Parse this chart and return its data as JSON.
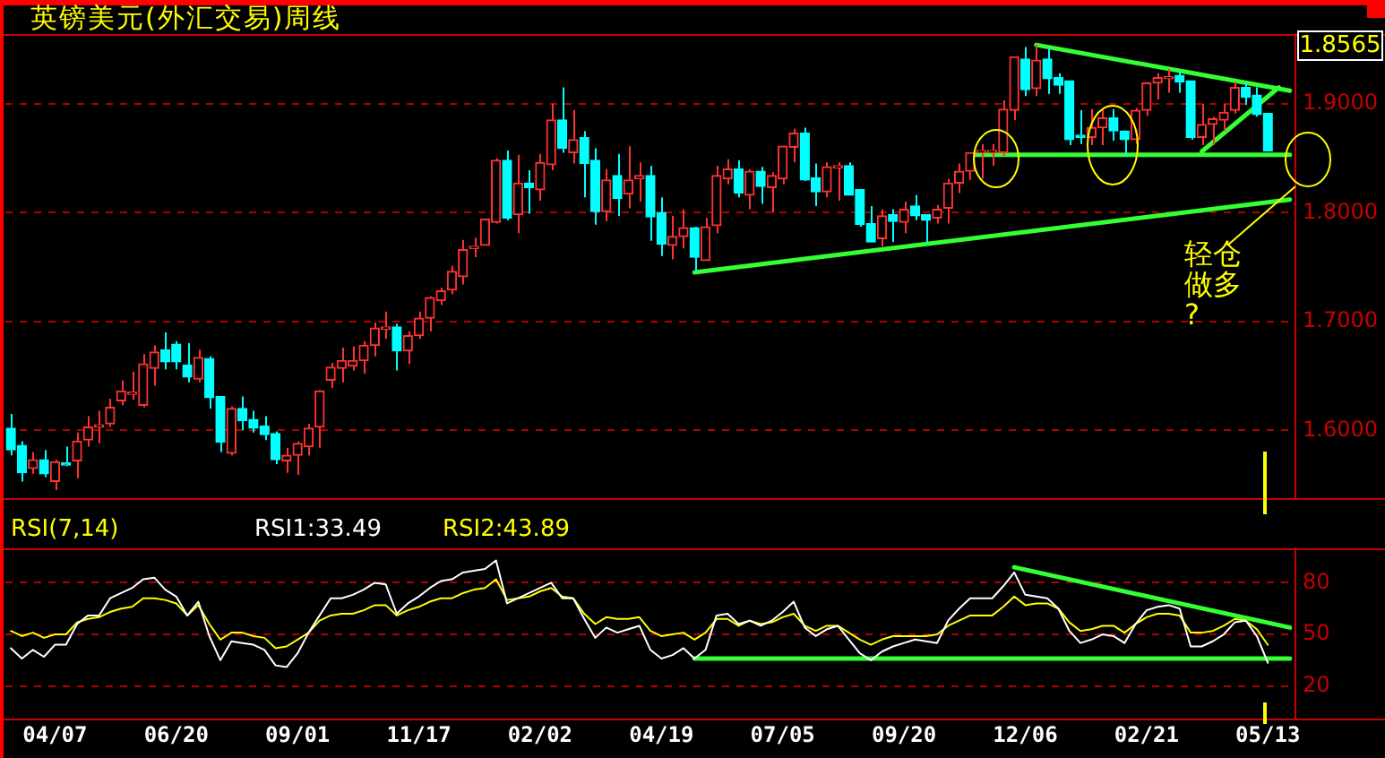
{
  "chart_data": [
    {
      "type": "candlestick",
      "title": "英镑美元(外汇交易)周线",
      "ohlc": [
        [
          1.602,
          1.615,
          1.577,
          1.582
        ],
        [
          1.586,
          1.59,
          1.553,
          1.561
        ],
        [
          1.565,
          1.58,
          1.56,
          1.573
        ],
        [
          1.573,
          1.582,
          1.557,
          1.56
        ],
        [
          1.553,
          1.573,
          1.545,
          1.571
        ],
        [
          1.57,
          1.585,
          1.567,
          1.568
        ],
        [
          1.572,
          1.598,
          1.556,
          1.59
        ],
        [
          1.591,
          1.613,
          1.585,
          1.603
        ],
        [
          1.603,
          1.618,
          1.588,
          1.605
        ],
        [
          1.606,
          1.629,
          1.603,
          1.621
        ],
        [
          1.627,
          1.646,
          1.623,
          1.636
        ],
        [
          1.633,
          1.654,
          1.628,
          1.635
        ],
        [
          1.623,
          1.67,
          1.621,
          1.661
        ],
        [
          1.657,
          1.678,
          1.641,
          1.672
        ],
        [
          1.674,
          1.69,
          1.656,
          1.663
        ],
        [
          1.679,
          1.682,
          1.656,
          1.663
        ],
        [
          1.66,
          1.68,
          1.644,
          1.649
        ],
        [
          1.647,
          1.674,
          1.644,
          1.667
        ],
        [
          1.666,
          1.668,
          1.62,
          1.63
        ],
        [
          1.631,
          1.631,
          1.58,
          1.589
        ],
        [
          1.579,
          1.622,
          1.577,
          1.62
        ],
        [
          1.62,
          1.631,
          1.6,
          1.609
        ],
        [
          1.61,
          1.618,
          1.598,
          1.602
        ],
        [
          1.604,
          1.613,
          1.591,
          1.596
        ],
        [
          1.597,
          1.599,
          1.569,
          1.573
        ],
        [
          1.572,
          1.584,
          1.561,
          1.577
        ],
        [
          1.577,
          1.59,
          1.559,
          1.588
        ],
        [
          1.585,
          1.606,
          1.577,
          1.602
        ],
        [
          1.603,
          1.637,
          1.584,
          1.636
        ],
        [
          1.646,
          1.662,
          1.639,
          1.658
        ],
        [
          1.657,
          1.676,
          1.644,
          1.664
        ],
        [
          1.659,
          1.677,
          1.655,
          1.664
        ],
        [
          1.664,
          1.682,
          1.652,
          1.678
        ],
        [
          1.678,
          1.699,
          1.668,
          1.694
        ],
        [
          1.693,
          1.709,
          1.684,
          1.695
        ],
        [
          1.695,
          1.698,
          1.655,
          1.673
        ],
        [
          1.673,
          1.691,
          1.661,
          1.687
        ],
        [
          1.687,
          1.709,
          1.684,
          1.703
        ],
        [
          1.703,
          1.723,
          1.691,
          1.722
        ],
        [
          1.719,
          1.731,
          1.715,
          1.728
        ],
        [
          1.729,
          1.751,
          1.725,
          1.746
        ],
        [
          1.741,
          1.775,
          1.734,
          1.766
        ],
        [
          1.767,
          1.777,
          1.759,
          1.769
        ],
        [
          1.77,
          1.794,
          1.77,
          1.794
        ],
        [
          1.791,
          1.85,
          1.79,
          1.848
        ],
        [
          1.848,
          1.857,
          1.793,
          1.795
        ],
        [
          1.798,
          1.853,
          1.781,
          1.827
        ],
        [
          1.827,
          1.839,
          1.799,
          1.823
        ],
        [
          1.821,
          1.854,
          1.811,
          1.846
        ],
        [
          1.844,
          1.9,
          1.839,
          1.885
        ],
        [
          1.885,
          1.915,
          1.855,
          1.859
        ],
        [
          1.855,
          1.894,
          1.845,
          1.867
        ],
        [
          1.869,
          1.875,
          1.814,
          1.845
        ],
        [
          1.848,
          1.859,
          1.789,
          1.801
        ],
        [
          1.801,
          1.84,
          1.792,
          1.83
        ],
        [
          1.834,
          1.854,
          1.797,
          1.813
        ],
        [
          1.817,
          1.861,
          1.804,
          1.83
        ],
        [
          1.831,
          1.846,
          1.81,
          1.834
        ],
        [
          1.834,
          1.843,
          1.774,
          1.796
        ],
        [
          1.8,
          1.814,
          1.76,
          1.771
        ],
        [
          1.77,
          1.797,
          1.757,
          1.778
        ],
        [
          1.778,
          1.803,
          1.767,
          1.786
        ],
        [
          1.786,
          1.787,
          1.745,
          1.759
        ],
        [
          1.756,
          1.795,
          1.756,
          1.787
        ],
        [
          1.788,
          1.843,
          1.781,
          1.834
        ],
        [
          1.831,
          1.849,
          1.826,
          1.84
        ],
        [
          1.84,
          1.848,
          1.814,
          1.818
        ],
        [
          1.816,
          1.84,
          1.803,
          1.838
        ],
        [
          1.838,
          1.842,
          1.808,
          1.824
        ],
        [
          1.823,
          1.837,
          1.8,
          1.834
        ],
        [
          1.831,
          1.861,
          1.826,
          1.861
        ],
        [
          1.86,
          1.877,
          1.846,
          1.873
        ],
        [
          1.873,
          1.878,
          1.829,
          1.83
        ],
        [
          1.832,
          1.845,
          1.806,
          1.819
        ],
        [
          1.819,
          1.846,
          1.814,
          1.842
        ],
        [
          1.841,
          1.846,
          1.811,
          1.843
        ],
        [
          1.843,
          1.846,
          1.816,
          1.816
        ],
        [
          1.821,
          1.821,
          1.787,
          1.789
        ],
        [
          1.79,
          1.806,
          1.773,
          1.773
        ],
        [
          1.776,
          1.803,
          1.769,
          1.797
        ],
        [
          1.798,
          1.803,
          1.773,
          1.792
        ],
        [
          1.791,
          1.81,
          1.781,
          1.803
        ],
        [
          1.806,
          1.816,
          1.793,
          1.797
        ],
        [
          1.798,
          1.798,
          1.772,
          1.793
        ],
        [
          1.795,
          1.807,
          1.79,
          1.803
        ],
        [
          1.804,
          1.831,
          1.79,
          1.827
        ],
        [
          1.827,
          1.845,
          1.818,
          1.838
        ],
        [
          1.838,
          1.855,
          1.83,
          1.855
        ],
        [
          1.855,
          1.863,
          1.831,
          1.857
        ],
        [
          1.855,
          1.863,
          1.843,
          1.857
        ],
        [
          1.855,
          1.903,
          1.852,
          1.895
        ],
        [
          1.894,
          1.943,
          1.885,
          1.943
        ],
        [
          1.941,
          1.952,
          1.907,
          1.913
        ],
        [
          1.914,
          1.954,
          1.907,
          1.94
        ],
        [
          1.941,
          1.952,
          1.909,
          1.923
        ],
        [
          1.924,
          1.928,
          1.909,
          1.917
        ],
        [
          1.921,
          1.921,
          1.862,
          1.867
        ],
        [
          1.871,
          1.894,
          1.863,
          1.869
        ],
        [
          1.869,
          1.895,
          1.862,
          1.878
        ],
        [
          1.878,
          1.895,
          1.862,
          1.887
        ],
        [
          1.887,
          1.895,
          1.866,
          1.875
        ],
        [
          1.875,
          1.875,
          1.852,
          1.867
        ],
        [
          1.867,
          1.896,
          1.863,
          1.894
        ],
        [
          1.894,
          1.92,
          1.889,
          1.919
        ],
        [
          1.919,
          1.928,
          1.904,
          1.924
        ],
        [
          1.923,
          1.932,
          1.91,
          1.925
        ],
        [
          1.926,
          1.93,
          1.91,
          1.92
        ],
        [
          1.921,
          1.921,
          1.867,
          1.869
        ],
        [
          1.869,
          1.9,
          1.862,
          1.881
        ],
        [
          1.881,
          1.888,
          1.862,
          1.886
        ],
        [
          1.885,
          1.9,
          1.875,
          1.892
        ],
        [
          1.894,
          1.92,
          1.891,
          1.915
        ],
        [
          1.915,
          1.92,
          1.899,
          1.906
        ],
        [
          1.908,
          1.915,
          1.888,
          1.89
        ],
        [
          1.891,
          1.891,
          1.8565,
          1.8565
        ],
        null,
        null
      ],
      "colors": [
        "#00ffff",
        "#00ffff",
        "#ff3232",
        "#00ffff",
        "#ff3232",
        "#00ffff",
        "#ff3232",
        "#ff3232",
        "#ff3232",
        "#ff3232",
        "#ff3232",
        "#ff3232",
        "#ff3232",
        "#ff3232",
        "#00ffff",
        "#00ffff",
        "#00ffff",
        "#ff3232",
        "#00ffff",
        "#00ffff",
        "#ff3232",
        "#00ffff",
        "#00ffff",
        "#00ffff",
        "#00ffff",
        "#ff3232",
        "#ff3232",
        "#ff3232",
        "#ff3232",
        "#ff3232",
        "#ff3232",
        "#ff3232",
        "#ff3232",
        "#ff3232",
        "#ff3232",
        "#00ffff",
        "#ff3232",
        "#ff3232",
        "#ff3232",
        "#ff3232",
        "#ff3232",
        "#ff3232",
        "#ff3232",
        "#ff3232",
        "#ff3232",
        "#00ffff",
        "#ff3232",
        "#00ffff",
        "#ff3232",
        "#ff3232",
        "#00ffff",
        "#ff3232",
        "#00ffff",
        "#00ffff",
        "#ff3232",
        "#00ffff",
        "#ff3232",
        "#ff3232",
        "#00ffff",
        "#00ffff",
        "#ff3232",
        "#ff3232",
        "#00ffff",
        "#ff3232",
        "#ff3232",
        "#ff3232",
        "#00ffff",
        "#ff3232",
        "#00ffff",
        "#ff3232",
        "#ff3232",
        "#ff3232",
        "#00ffff",
        "#00ffff",
        "#ff3232",
        "#ff3232",
        "#00ffff",
        "#00ffff",
        "#00ffff",
        "#ff3232",
        "#00ffff",
        "#ff3232",
        "#00ffff",
        "#00ffff",
        "#ff3232",
        "#ff3232",
        "#ff3232",
        "#ff3232",
        "#ff3232",
        "#ff3232",
        "#ff3232",
        "#ff3232",
        "#00ffff",
        "#ff3232",
        "#00ffff",
        "#00ffff",
        "#00ffff",
        "#00ffff",
        "#ff3232",
        "#ff3232",
        "#00ffff",
        "#00ffff",
        "#ff3232",
        "#ff3232",
        "#ff3232",
        "#ff3232",
        "#00ffff",
        "#00ffff",
        "#ff3232",
        "#ff3232",
        "#ff3232",
        "#ff3232",
        "#00ffff",
        "#00ffff",
        "#00ffff",
        null,
        null
      ],
      "series": [
        {
          "type": "line",
          "color": "#33ff33",
          "values": [
            null,
            null,
            null,
            null,
            null,
            null,
            null,
            null,
            null,
            null,
            null,
            null,
            null,
            null,
            null,
            null,
            null,
            null,
            null,
            null,
            null,
            null,
            null,
            null,
            null,
            null,
            null,
            null,
            null,
            null,
            null,
            null,
            null,
            null,
            null,
            null,
            null,
            null,
            null,
            null,
            null,
            null,
            null,
            null,
            null,
            null,
            null,
            null,
            null,
            null,
            null,
            null,
            null,
            null,
            null,
            null,
            null,
            null,
            null,
            null,
            null,
            null,
            1.745,
            null,
            null,
            null,
            null,
            null,
            null,
            null,
            null,
            null,
            null,
            null,
            null,
            null,
            null,
            null,
            null,
            null,
            null,
            null,
            null,
            null,
            null,
            null,
            null,
            null,
            null,
            null,
            null,
            null,
            null,
            null,
            null,
            null,
            null,
            null,
            null,
            null,
            null,
            null,
            null,
            null,
            null,
            null,
            null,
            null,
            null,
            null,
            null,
            null,
            null,
            null,
            null,
            null,
            1.812
          ]
        },
        {
          "type": "line",
          "color": "#33ff33",
          "values": [
            null,
            null,
            null,
            null,
            null,
            null,
            null,
            null,
            null,
            null,
            null,
            null,
            null,
            null,
            null,
            null,
            null,
            null,
            null,
            null,
            null,
            null,
            null,
            null,
            null,
            null,
            null,
            null,
            null,
            null,
            null,
            null,
            null,
            null,
            null,
            null,
            null,
            null,
            null,
            null,
            null,
            null,
            null,
            null,
            null,
            null,
            null,
            null,
            null,
            null,
            null,
            null,
            null,
            null,
            null,
            null,
            null,
            null,
            null,
            null,
            null,
            null,
            null,
            null,
            null,
            null,
            null,
            null,
            null,
            null,
            null,
            null,
            null,
            null,
            null,
            null,
            null,
            null,
            null,
            null,
            null,
            null,
            null,
            null,
            null,
            null,
            null,
            null,
            null,
            null,
            null,
            null,
            null,
            1.954,
            null,
            null,
            null,
            null,
            null,
            null,
            null,
            null,
            null,
            null,
            null,
            null,
            null,
            null,
            null,
            null,
            null,
            null,
            null,
            null,
            null,
            null,
            1.912
          ]
        },
        {
          "type": "line",
          "color": "#33ff33",
          "values": [
            null,
            null,
            null,
            null,
            null,
            null,
            null,
            null,
            null,
            null,
            null,
            null,
            null,
            null,
            null,
            null,
            null,
            null,
            null,
            null,
            null,
            null,
            null,
            null,
            null,
            null,
            null,
            null,
            null,
            null,
            null,
            null,
            null,
            null,
            null,
            null,
            null,
            null,
            null,
            null,
            null,
            null,
            null,
            null,
            null,
            null,
            null,
            null,
            null,
            null,
            null,
            null,
            null,
            null,
            null,
            null,
            null,
            null,
            null,
            null,
            null,
            null,
            null,
            null,
            null,
            null,
            null,
            null,
            null,
            null,
            null,
            null,
            null,
            null,
            null,
            null,
            null,
            null,
            null,
            null,
            null,
            null,
            null,
            null,
            null,
            null,
            null,
            1.853,
            null,
            null,
            null,
            null,
            null,
            null,
            null,
            null,
            null,
            null,
            null,
            null,
            null,
            null,
            null,
            null,
            null,
            null,
            null,
            null,
            null,
            null,
            null,
            null,
            null,
            null,
            null,
            null,
            1.853
          ]
        },
        {
          "type": "line",
          "color": "#33ff33",
          "values": [
            null,
            null,
            null,
            null,
            null,
            null,
            null,
            null,
            null,
            null,
            null,
            null,
            null,
            null,
            null,
            null,
            null,
            null,
            null,
            null,
            null,
            null,
            null,
            null,
            null,
            null,
            null,
            null,
            null,
            null,
            null,
            null,
            null,
            null,
            null,
            null,
            null,
            null,
            null,
            null,
            null,
            null,
            null,
            null,
            null,
            null,
            null,
            null,
            null,
            null,
            null,
            null,
            null,
            null,
            null,
            null,
            null,
            null,
            null,
            null,
            null,
            null,
            null,
            null,
            null,
            null,
            null,
            null,
            null,
            null,
            null,
            null,
            null,
            null,
            null,
            null,
            null,
            null,
            null,
            null,
            null,
            null,
            null,
            null,
            null,
            null,
            null,
            null,
            null,
            null,
            null,
            null,
            null,
            null,
            null,
            null,
            null,
            null,
            null,
            null,
            null,
            null,
            null,
            null,
            null,
            null,
            null,
            null,
            1.856,
            null,
            null,
            null,
            null,
            null,
            null,
            1.915,
            null
          ]
        }
      ],
      "ylim": [
        1.538,
        1.964
      ],
      "yticks": [
        {
          "value": 1.6,
          "label": "1.6000"
        },
        {
          "value": 1.7,
          "label": "1.7000"
        },
        {
          "value": 1.8,
          "label": "1.8000"
        },
        {
          "value": 1.9,
          "label": "1.9000"
        }
      ],
      "grid": "y",
      "tick_labels": "y",
      "annotations": [
        "1.8565",
        "轻仓做多?"
      ]
    },
    {
      "type": "line",
      "title": "RSI(7,14)",
      "categories": [
        null,
        null,
        null,
        null,
        "04/07",
        null,
        null,
        null,
        null,
        null,
        null,
        null,
        null,
        null,
        null,
        "06/20",
        null,
        null,
        null,
        null,
        null,
        null,
        null,
        null,
        null,
        null,
        "09/01",
        null,
        null,
        null,
        null,
        null,
        null,
        null,
        null,
        null,
        null,
        "11/17",
        null,
        null,
        null,
        null,
        null,
        null,
        null,
        null,
        null,
        null,
        "02/02",
        null,
        null,
        null,
        null,
        null,
        null,
        null,
        null,
        null,
        null,
        "04/19",
        null,
        null,
        null,
        null,
        null,
        null,
        null,
        null,
        null,
        null,
        "07/05",
        null,
        null,
        null,
        null,
        null,
        null,
        null,
        null,
        null,
        null,
        "09/20",
        null,
        null,
        null,
        null,
        null,
        null,
        null,
        null,
        null,
        null,
        "12/06",
        null,
        null,
        null,
        null,
        null,
        null,
        null,
        null,
        null,
        null,
        "02/21",
        null,
        null,
        null,
        null,
        null,
        null,
        null,
        null,
        null,
        null,
        "05/13",
        null,
        null
      ],
      "series": [
        {
          "name": "RSI1:33.49",
          "color": "#ffffff",
          "values": [
            42,
            36,
            41,
            37,
            44,
            44,
            56,
            61,
            61,
            71,
            74,
            77,
            82,
            83,
            76,
            72,
            61,
            69,
            49,
            35,
            46,
            45,
            44,
            41,
            32,
            31,
            39,
            51,
            61,
            71,
            71,
            73,
            76,
            80,
            79,
            62,
            68,
            72,
            77,
            81,
            82,
            86,
            87,
            88,
            93,
            68,
            71,
            74,
            77,
            80,
            71,
            71,
            59,
            48,
            54,
            51,
            53,
            55,
            41,
            36,
            38,
            42,
            36,
            41,
            61,
            62,
            56,
            58,
            55,
            58,
            63,
            69,
            54,
            49,
            53,
            55,
            47,
            39,
            35,
            40,
            43,
            45,
            47,
            46,
            45,
            58,
            65,
            71,
            71,
            71,
            78,
            86,
            73,
            72,
            71,
            65,
            52,
            45,
            47,
            50,
            49,
            45,
            56,
            64,
            66,
            67,
            65,
            43,
            43,
            46,
            50,
            57,
            58,
            49,
            33.49,
            null,
            null
          ]
        },
        {
          "name": "RSI2:43.89",
          "color": "#ffff00",
          "values": [
            52,
            49,
            51,
            48,
            50,
            50,
            57,
            59,
            60,
            63,
            65,
            66,
            71,
            71,
            70,
            68,
            61,
            67,
            56,
            47,
            51,
            51,
            49,
            48,
            42,
            43,
            47,
            51,
            58,
            61,
            62,
            62,
            64,
            67,
            67,
            61,
            64,
            66,
            69,
            71,
            71,
            74,
            76,
            77,
            82,
            70,
            71,
            72,
            75,
            77,
            72,
            71,
            62,
            56,
            60,
            59,
            59,
            60,
            52,
            49,
            50,
            51,
            47,
            51,
            59,
            59,
            55,
            58,
            56,
            57,
            60,
            62,
            55,
            52,
            55,
            55,
            51,
            47,
            44,
            47,
            49,
            49,
            49,
            49,
            50,
            55,
            58,
            61,
            61,
            61,
            66,
            72,
            67,
            68,
            68,
            65,
            57,
            52,
            53,
            55,
            55,
            51,
            56,
            60,
            62,
            62,
            61,
            51,
            51,
            52,
            55,
            59,
            58,
            53,
            43.89,
            null,
            null
          ]
        },
        {
          "color": "#33ff33",
          "values": [
            null,
            null,
            null,
            null,
            null,
            null,
            null,
            null,
            null,
            null,
            null,
            null,
            null,
            null,
            null,
            null,
            null,
            null,
            null,
            null,
            null,
            null,
            null,
            null,
            null,
            null,
            null,
            null,
            null,
            null,
            null,
            null,
            null,
            null,
            null,
            null,
            null,
            null,
            null,
            null,
            null,
            null,
            null,
            null,
            null,
            null,
            null,
            null,
            null,
            null,
            null,
            null,
            null,
            null,
            null,
            null,
            null,
            null,
            null,
            null,
            null,
            null,
            null,
            null,
            null,
            null,
            null,
            null,
            null,
            null,
            null,
            null,
            null,
            null,
            null,
            null,
            null,
            null,
            null,
            null,
            null,
            null,
            null,
            null,
            null,
            null,
            null,
            null,
            null,
            null,
            null,
            89,
            null,
            null,
            null,
            null,
            null,
            null,
            null,
            null,
            null,
            null,
            null,
            null,
            null,
            null,
            null,
            null,
            null,
            null,
            null,
            null,
            null,
            null,
            null,
            null,
            54
          ]
        },
        {
          "color": "#33ff33",
          "values": [
            null,
            null,
            null,
            null,
            null,
            null,
            null,
            null,
            null,
            null,
            null,
            null,
            null,
            null,
            null,
            null,
            null,
            null,
            null,
            null,
            null,
            null,
            null,
            null,
            null,
            null,
            null,
            null,
            null,
            null,
            null,
            null,
            null,
            null,
            null,
            null,
            null,
            null,
            null,
            null,
            null,
            null,
            null,
            null,
            null,
            null,
            null,
            null,
            null,
            null,
            null,
            null,
            null,
            null,
            null,
            null,
            null,
            null,
            null,
            null,
            null,
            null,
            36,
            null,
            null,
            null,
            null,
            null,
            null,
            null,
            null,
            null,
            null,
            null,
            null,
            null,
            null,
            null,
            null,
            null,
            null,
            null,
            null,
            null,
            null,
            null,
            null,
            null,
            null,
            null,
            null,
            null,
            null,
            null,
            null,
            null,
            null,
            null,
            null,
            null,
            null,
            null,
            null,
            null,
            null,
            null,
            null,
            null,
            null,
            null,
            null,
            null,
            null,
            null,
            null,
            null,
            36
          ]
        }
      ],
      "ylim": [
        1.5,
        100
      ],
      "yticks": [
        20,
        50,
        80
      ],
      "grid": "y",
      "legend": "top"
    }
  ]
}
